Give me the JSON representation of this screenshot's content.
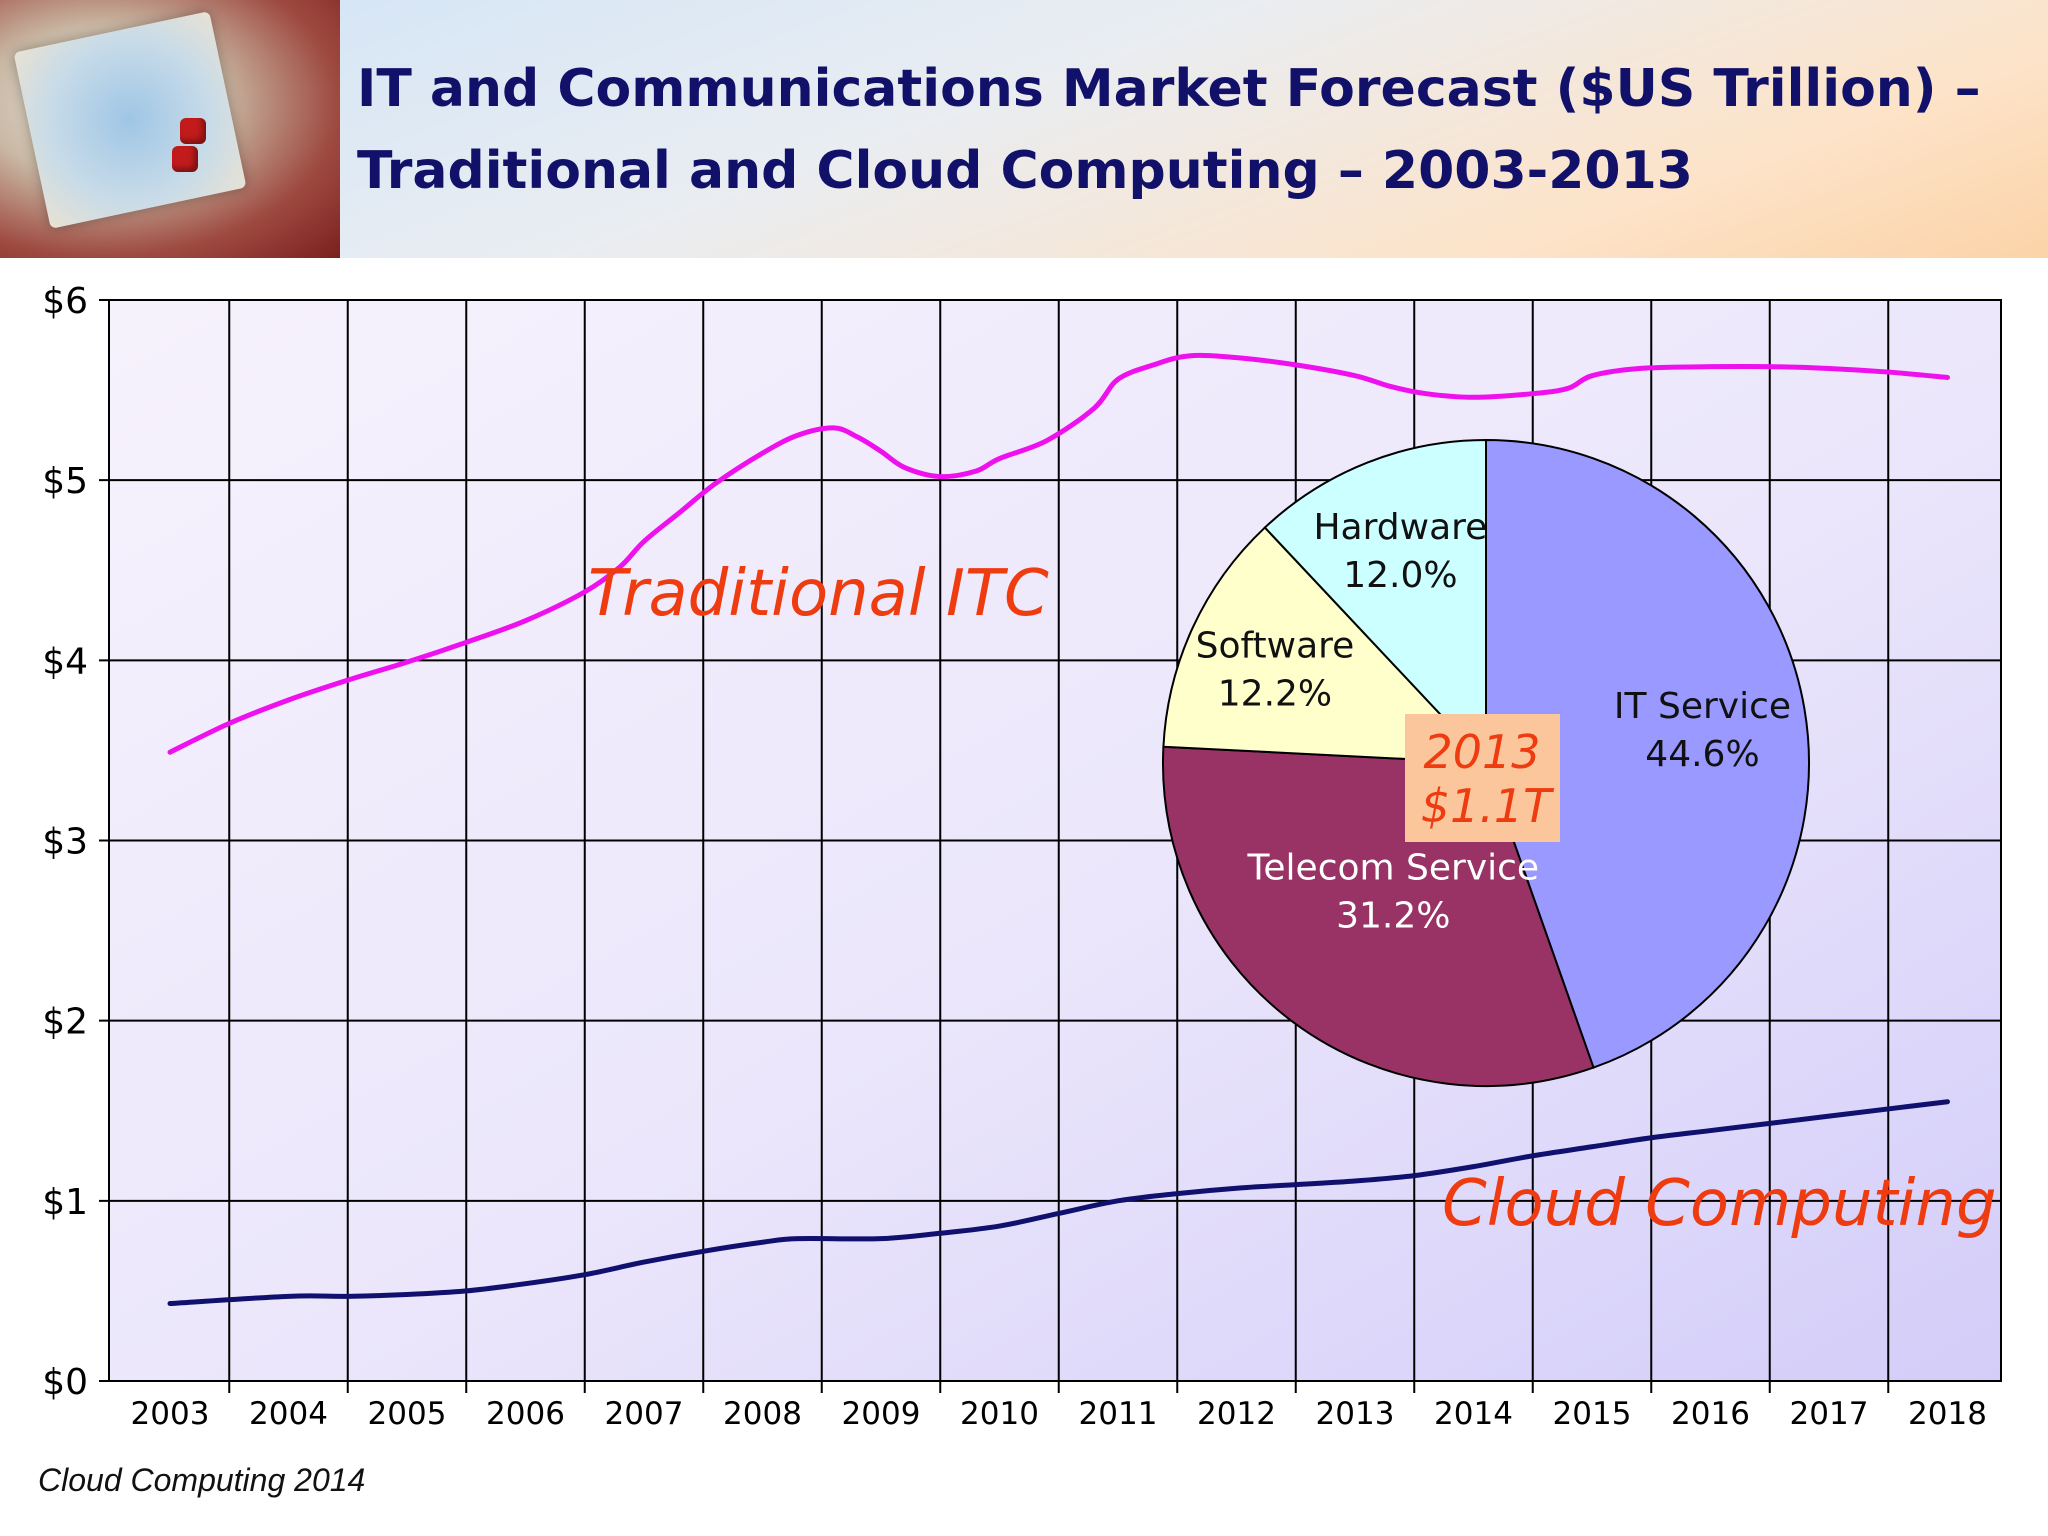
{
  "slide": {
    "title_line1": "IT and Communications Market Forecast ($US Trillion) –",
    "title_line2": "Traditional and Cloud Computing – 2003-2013",
    "footer": "Cloud Computing 2014"
  },
  "chart_data": [
    {
      "type": "line",
      "x": [
        2003,
        2004,
        2005,
        2006,
        2007,
        2008,
        2009,
        2010,
        2011,
        2012,
        2013,
        2014,
        2015,
        2016,
        2017,
        2018
      ],
      "categories": [
        "2003",
        "2004",
        "2005",
        "2006",
        "2007",
        "2008",
        "2009",
        "2010",
        "2011",
        "2012",
        "2013",
        "2014",
        "2015",
        "2016",
        "2017",
        "2018"
      ],
      "yticks": [
        "$0",
        "$1",
        "$2",
        "$3",
        "$4",
        "$5",
        "$6"
      ],
      "ylim": [
        0,
        6
      ],
      "grid": true,
      "series": [
        {
          "name": "Traditional ITC",
          "color": "#ee11ee",
          "points": [
            [
              2003,
              3.49
            ],
            [
              2003.5,
              3.65
            ],
            [
              2004,
              3.78
            ],
            [
              2004.5,
              3.89
            ],
            [
              2005,
              3.99
            ],
            [
              2005.5,
              4.1
            ],
            [
              2006,
              4.22
            ],
            [
              2006.5,
              4.38
            ],
            [
              2006.8,
              4.52
            ],
            [
              2007,
              4.66
            ],
            [
              2007.3,
              4.82
            ],
            [
              2007.6,
              4.98
            ],
            [
              2008,
              5.15
            ],
            [
              2008.3,
              5.25
            ],
            [
              2008.6,
              5.29
            ],
            [
              2008.8,
              5.24
            ],
            [
              2009,
              5.16
            ],
            [
              2009.2,
              5.07
            ],
            [
              2009.5,
              5.02
            ],
            [
              2009.8,
              5.05
            ],
            [
              2010,
              5.12
            ],
            [
              2010.4,
              5.22
            ],
            [
              2010.8,
              5.4
            ],
            [
              2011,
              5.56
            ],
            [
              2011.3,
              5.64
            ],
            [
              2011.6,
              5.69
            ],
            [
              2012,
              5.68
            ],
            [
              2012.5,
              5.64
            ],
            [
              2013,
              5.58
            ],
            [
              2013.3,
              5.52
            ],
            [
              2013.6,
              5.48
            ],
            [
              2014,
              5.46
            ],
            [
              2014.5,
              5.48
            ],
            [
              2014.8,
              5.51
            ],
            [
              2015,
              5.58
            ],
            [
              2015.4,
              5.62
            ],
            [
              2016,
              5.63
            ],
            [
              2016.5,
              5.63
            ],
            [
              2017,
              5.62
            ],
            [
              2017.5,
              5.6
            ],
            [
              2018,
              5.57
            ]
          ]
        },
        {
          "name": "Cloud Computing",
          "color": "#10106e",
          "points": [
            [
              2003,
              0.43
            ],
            [
              2004,
              0.47
            ],
            [
              2004.5,
              0.47
            ],
            [
              2005,
              0.48
            ],
            [
              2005.5,
              0.5
            ],
            [
              2006,
              0.54
            ],
            [
              2006.5,
              0.59
            ],
            [
              2007,
              0.66
            ],
            [
              2007.5,
              0.72
            ],
            [
              2008,
              0.77
            ],
            [
              2008.3,
              0.79
            ],
            [
              2009,
              0.79
            ],
            [
              2009.5,
              0.82
            ],
            [
              2010,
              0.86
            ],
            [
              2010.5,
              0.93
            ],
            [
              2011,
              1.0
            ],
            [
              2011.5,
              1.04
            ],
            [
              2012,
              1.07
            ],
            [
              2012.5,
              1.09
            ],
            [
              2013,
              1.11
            ],
            [
              2013.5,
              1.14
            ],
            [
              2014,
              1.19
            ],
            [
              2014.5,
              1.25
            ],
            [
              2015,
              1.3
            ],
            [
              2015.5,
              1.35
            ],
            [
              2016,
              1.39
            ],
            [
              2016.5,
              1.43
            ],
            [
              2017,
              1.47
            ],
            [
              2017.5,
              1.51
            ],
            [
              2018,
              1.55
            ]
          ]
        }
      ],
      "annotations": {
        "traditional": "Traditional ITC",
        "cloud": "Cloud Computing"
      }
    },
    {
      "type": "pie",
      "center_label_line1": "2013",
      "center_label_line2": "$1.1T",
      "slices": [
        {
          "label": "IT Service",
          "value": 44.6,
          "value_label": "44.6%",
          "color": "#9999ff",
          "text_color": "#111111"
        },
        {
          "label": "Telecom Service",
          "value": 31.2,
          "value_label": "31.2%",
          "color": "#993366",
          "text_color": "#ffffff"
        },
        {
          "label": "Software",
          "value": 12.2,
          "value_label": "12.2%",
          "color": "#ffffcc",
          "text_color": "#111111"
        },
        {
          "label": "Hardware",
          "value": 12.0,
          "value_label": "12.0%",
          "color": "#ccffff",
          "text_color": "#111111"
        }
      ]
    }
  ]
}
